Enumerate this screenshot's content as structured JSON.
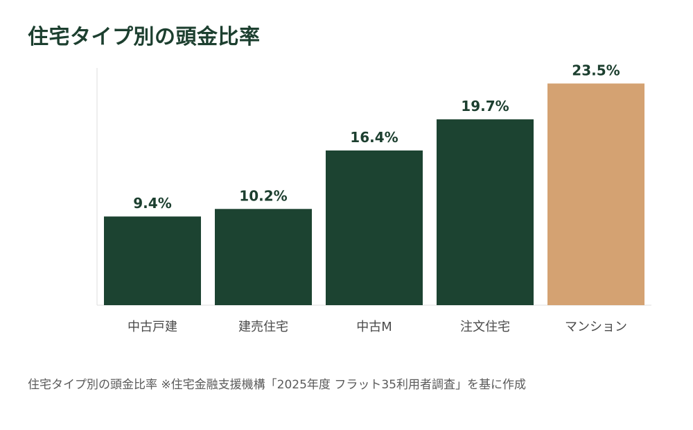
{
  "title": "住宅タイプ別の頭金比率",
  "footnote": "住宅タイプ別の頭金比率 ※住宅金融支援機構「2025年度 フラット35利用者調査」を基に作成",
  "colors": {
    "primary": "#1c4331",
    "highlight": "#d4a272",
    "axis": "#dddddd"
  },
  "chart_data": {
    "type": "bar",
    "categories": [
      "中古戸建",
      "建売住宅",
      "中古M",
      "注文住宅",
      "マンション"
    ],
    "values": [
      9.4,
      10.2,
      16.4,
      19.7,
      23.5
    ],
    "value_labels": [
      "9.4%",
      "10.2%",
      "16.4%",
      "19.7%",
      "23.5%"
    ],
    "highlight_category": "マンション",
    "unit": "%",
    "ylim": [
      0,
      25
    ],
    "grid": false,
    "legend": "none"
  }
}
